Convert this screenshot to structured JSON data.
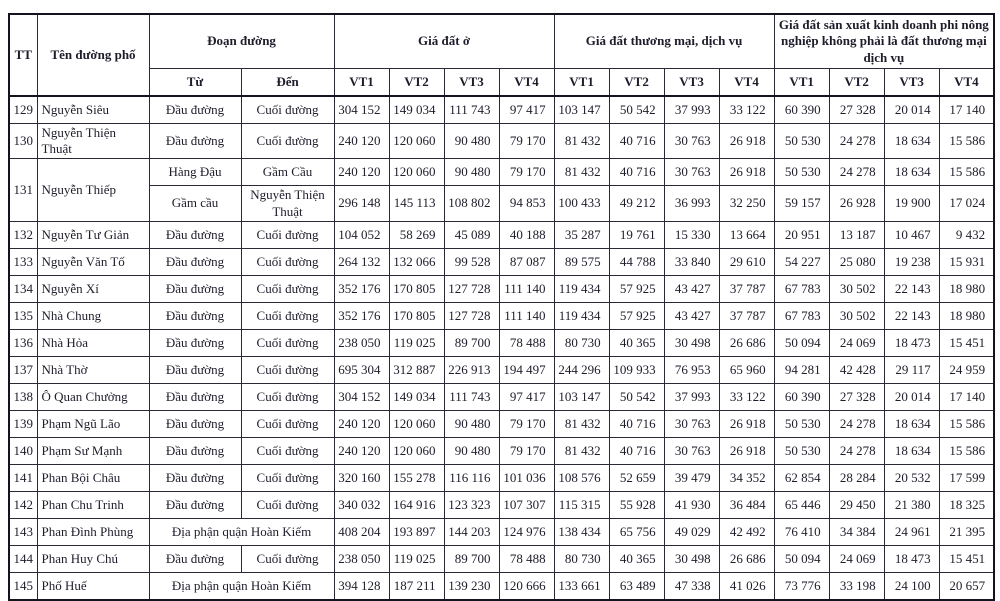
{
  "page": {
    "background_color": "#ffffff",
    "text_color": "#1d1d2b",
    "border_color": "#141420"
  },
  "table": {
    "headers": {
      "tt": "TT",
      "street": "Tên đường phố",
      "segment_group": "Đoạn đường",
      "from": "Từ",
      "to": "Đến",
      "group_residential": "Giá đất ở",
      "group_commercial": "Giá đất thương mại, dịch vụ",
      "group_production": "Giá đất sản xuất kinh doanh phi nông nghiệp không phải là đất thương mại dịch vụ",
      "vt": [
        "VT1",
        "VT2",
        "VT3",
        "VT4"
      ]
    },
    "rows": [
      {
        "tt": "129",
        "street": "Nguyễn Siêu",
        "segments": [
          {
            "from": "Đầu đường",
            "to": "Cuối đường",
            "values": [
              "304 152",
              "149 034",
              "111 743",
              "97 417",
              "103 147",
              "50 542",
              "37 993",
              "33 122",
              "60 390",
              "27 328",
              "20 014",
              "17 140"
            ]
          }
        ]
      },
      {
        "tt": "130",
        "street": "Nguyễn Thiện Thuật",
        "segments": [
          {
            "from": "Đầu đường",
            "to": "Cuối đường",
            "values": [
              "240 120",
              "120 060",
              "90 480",
              "79 170",
              "81 432",
              "40 716",
              "30 763",
              "26 918",
              "50 530",
              "24 278",
              "18 634",
              "15 586"
            ]
          }
        ]
      },
      {
        "tt": "131",
        "street": "Nguyễn Thiếp",
        "segments": [
          {
            "from": "Hàng Đậu",
            "to": "Gầm Cầu",
            "values": [
              "240 120",
              "120 060",
              "90 480",
              "79 170",
              "81 432",
              "40 716",
              "30 763",
              "26 918",
              "50 530",
              "24 278",
              "18 634",
              "15 586"
            ]
          },
          {
            "from": "Gầm cầu",
            "to": "Nguyễn Thiện Thuật",
            "values": [
              "296 148",
              "145 113",
              "108 802",
              "94 853",
              "100 433",
              "49 212",
              "36 993",
              "32 250",
              "59 157",
              "26 928",
              "19 900",
              "17 024"
            ]
          }
        ]
      },
      {
        "tt": "132",
        "street": "Nguyễn Tư Giản",
        "segments": [
          {
            "from": "Đầu đường",
            "to": "Cuối đường",
            "values": [
              "104 052",
              "58 269",
              "45 089",
              "40 188",
              "35 287",
              "19 761",
              "15 330",
              "13 664",
              "20 951",
              "13 187",
              "10 467",
              "9 432"
            ]
          }
        ]
      },
      {
        "tt": "133",
        "street": "Nguyễn Văn Tố",
        "segments": [
          {
            "from": "Đầu đường",
            "to": "Cuối đường",
            "values": [
              "264 132",
              "132 066",
              "99 528",
              "87 087",
              "89 575",
              "44 788",
              "33 840",
              "29 610",
              "54 227",
              "25 080",
              "19 238",
              "15 931"
            ]
          }
        ]
      },
      {
        "tt": "134",
        "street": "Nguyễn Xí",
        "segments": [
          {
            "from": "Đầu đường",
            "to": "Cuối đường",
            "values": [
              "352 176",
              "170 805",
              "127 728",
              "111 140",
              "119 434",
              "57 925",
              "43 427",
              "37 787",
              "67 783",
              "30 502",
              "22 143",
              "18 980"
            ]
          }
        ]
      },
      {
        "tt": "135",
        "street": "Nhà Chung",
        "segments": [
          {
            "from": "Đầu đường",
            "to": "Cuối đường",
            "values": [
              "352 176",
              "170 805",
              "127 728",
              "111 140",
              "119 434",
              "57 925",
              "43 427",
              "37 787",
              "67 783",
              "30 502",
              "22 143",
              "18 980"
            ]
          }
        ]
      },
      {
        "tt": "136",
        "street": "Nhà Hỏa",
        "segments": [
          {
            "from": "Đầu đường",
            "to": "Cuối đường",
            "values": [
              "238 050",
              "119 025",
              "89 700",
              "78 488",
              "80 730",
              "40 365",
              "30 498",
              "26 686",
              "50 094",
              "24 069",
              "18 473",
              "15 451"
            ]
          }
        ]
      },
      {
        "tt": "137",
        "street": "Nhà Thờ",
        "segments": [
          {
            "from": "Đầu đường",
            "to": "Cuối đường",
            "values": [
              "695 304",
              "312 887",
              "226 913",
              "194 497",
              "244 296",
              "109 933",
              "76 953",
              "65 960",
              "94 281",
              "42 428",
              "29 117",
              "24 959"
            ]
          }
        ]
      },
      {
        "tt": "138",
        "street": "Ô Quan Chưởng",
        "segments": [
          {
            "from": "Đầu đường",
            "to": "Cuối đường",
            "values": [
              "304 152",
              "149 034",
              "111 743",
              "97 417",
              "103 147",
              "50 542",
              "37 993",
              "33 122",
              "60 390",
              "27 328",
              "20 014",
              "17 140"
            ]
          }
        ]
      },
      {
        "tt": "139",
        "street": "Phạm Ngũ Lão",
        "segments": [
          {
            "from": "Đầu đường",
            "to": "Cuối đường",
            "values": [
              "240 120",
              "120 060",
              "90 480",
              "79 170",
              "81 432",
              "40 716",
              "30 763",
              "26 918",
              "50 530",
              "24 278",
              "18 634",
              "15 586"
            ]
          }
        ]
      },
      {
        "tt": "140",
        "street": "Phạm Sư Mạnh",
        "segments": [
          {
            "from": "Đầu đường",
            "to": "Cuối đường",
            "values": [
              "240 120",
              "120 060",
              "90 480",
              "79 170",
              "81 432",
              "40 716",
              "30 763",
              "26 918",
              "50 530",
              "24 278",
              "18 634",
              "15 586"
            ]
          }
        ]
      },
      {
        "tt": "141",
        "street": "Phan Bội Châu",
        "segments": [
          {
            "from": "Đầu đường",
            "to": "Cuối đường",
            "values": [
              "320 160",
              "155 278",
              "116 116",
              "101 036",
              "108 576",
              "52 659",
              "39 479",
              "34 352",
              "62 854",
              "28 284",
              "20 532",
              "17 599"
            ]
          }
        ]
      },
      {
        "tt": "142",
        "street": "Phan Chu Trinh",
        "segments": [
          {
            "from": "Đầu đường",
            "to": "Cuối đường",
            "values": [
              "340 032",
              "164 916",
              "123 323",
              "107 307",
              "115 315",
              "55 928",
              "41 930",
              "36 484",
              "65 446",
              "29 450",
              "21 380",
              "18 325"
            ]
          }
        ]
      },
      {
        "tt": "143",
        "street": "Phan Đình Phùng",
        "segments": [
          {
            "merged": "Địa phận quận Hoàn Kiếm",
            "values": [
              "408 204",
              "193 897",
              "144 203",
              "124 976",
              "138 434",
              "65 756",
              "49 029",
              "42 492",
              "76 410",
              "34 384",
              "24 961",
              "21 395"
            ]
          }
        ]
      },
      {
        "tt": "144",
        "street": "Phan Huy Chú",
        "segments": [
          {
            "from": "Đầu đường",
            "to": "Cuối đường",
            "values": [
              "238 050",
              "119 025",
              "89 700",
              "78 488",
              "80 730",
              "40 365",
              "30 498",
              "26 686",
              "50 094",
              "24 069",
              "18 473",
              "15 451"
            ]
          }
        ]
      },
      {
        "tt": "145",
        "street": "Phố Huế",
        "segments": [
          {
            "merged": "Địa phận quận Hoàn Kiếm",
            "values": [
              "394 128",
              "187 211",
              "139 230",
              "120 666",
              "133 661",
              "63 489",
              "47 338",
              "41 026",
              "73 776",
              "33 198",
              "24 100",
              "20 657"
            ]
          }
        ]
      }
    ]
  }
}
